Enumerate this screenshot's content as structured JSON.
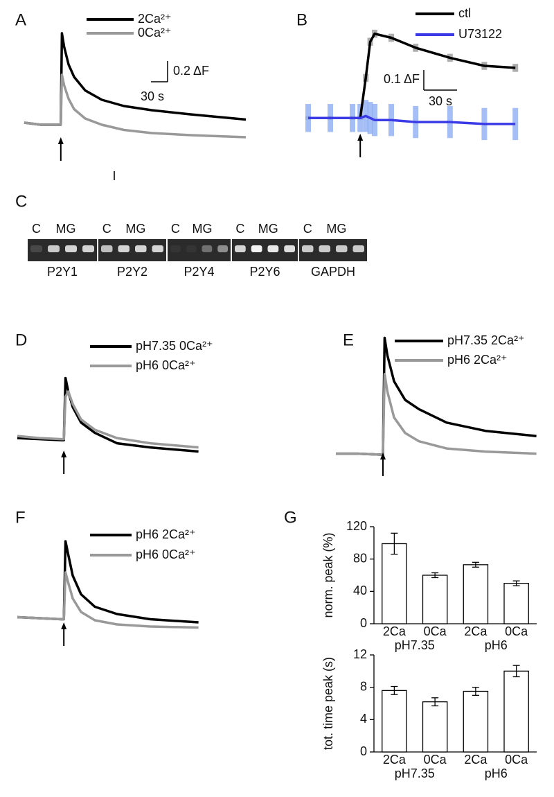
{
  "chart_data": [
    {
      "type": "line",
      "panel": "A",
      "annotation": "I",
      "x": [
        0,
        30,
        60,
        66,
        68,
        72,
        80,
        90,
        110,
        140,
        180,
        230,
        300,
        400
      ],
      "xlim": [
        0,
        410
      ],
      "ylim": [
        -0.2,
        0.9
      ],
      "stimulus": 66,
      "xscale": {
        "value": 30,
        "label": "30 s"
      },
      "yscale": {
        "value": 0.2,
        "label": "0.2 ΔF"
      },
      "series": [
        {
          "name": "2Ca²⁺",
          "color": "#000000",
          "values": [
            0.02,
            0.0,
            0.0,
            0.0,
            0.88,
            0.75,
            0.58,
            0.46,
            0.33,
            0.24,
            0.18,
            0.14,
            0.1,
            0.05
          ]
        },
        {
          "name": "0Ca²⁺",
          "color": "#999999",
          "values": [
            0.02,
            0.0,
            0.0,
            0.0,
            0.48,
            0.38,
            0.25,
            0.15,
            0.06,
            0.0,
            -0.05,
            -0.08,
            -0.1,
            -0.12
          ]
        }
      ]
    },
    {
      "type": "line",
      "panel": "B",
      "x": [
        0,
        20,
        40,
        47,
        52,
        56,
        60,
        75,
        97,
        128,
        159,
        187
      ],
      "xlim": [
        0,
        190
      ],
      "ylim": [
        -0.12,
        0.45
      ],
      "stimulus": 47,
      "xscale": {
        "value": 30,
        "label": "30 s"
      },
      "yscale": {
        "value": 0.1,
        "label": "0.1 ΔF"
      },
      "series": [
        {
          "name": "ctl",
          "color": "#000000",
          "values": [
            0.0,
            0.0,
            0.0,
            0.0,
            0.2,
            0.38,
            0.42,
            0.4,
            0.35,
            0.3,
            0.26,
            0.25
          ],
          "errors": [
            0.01,
            0.01,
            0.01,
            0.01,
            0.02,
            0.02,
            0.02,
            0.02,
            0.02,
            0.02,
            0.02,
            0.02
          ]
        },
        {
          "name": "U73122",
          "color": "#3a3ae6",
          "values": [
            0.0,
            0.0,
            0.0,
            0.0,
            0.01,
            0.0,
            -0.01,
            -0.01,
            -0.02,
            -0.02,
            -0.03,
            -0.03
          ],
          "errors": [
            0.07,
            0.07,
            0.07,
            0.07,
            0.08,
            0.08,
            0.08,
            0.08,
            0.08,
            0.08,
            0.08,
            0.08
          ]
        }
      ]
    },
    {
      "type": "line",
      "panel": "D",
      "x": [
        0,
        40,
        80,
        84,
        87,
        92,
        100,
        115,
        140,
        180,
        240,
        327
      ],
      "xlim": [
        0,
        330
      ],
      "ylim": [
        -0.2,
        0.65
      ],
      "stimulus": 84,
      "series": [
        {
          "name": "pH7.35 0Ca²⁺",
          "color": "#000000",
          "values": [
            0.0,
            -0.01,
            -0.02,
            -0.02,
            0.58,
            0.45,
            0.3,
            0.15,
            0.05,
            -0.05,
            -0.09,
            -0.13
          ]
        },
        {
          "name": "pH6 0Ca²⁺",
          "color": "#999999",
          "values": [
            0.02,
            0.0,
            -0.01,
            -0.01,
            0.4,
            0.45,
            0.33,
            0.18,
            0.08,
            0.0,
            -0.05,
            -0.09
          ]
        }
      ]
    },
    {
      "type": "line",
      "panel": "E",
      "x": [
        0,
        40,
        80,
        85,
        88,
        93,
        105,
        125,
        150,
        200,
        270,
        362
      ],
      "xlim": [
        0,
        370
      ],
      "ylim": [
        -0.07,
        1.17
      ],
      "stimulus": 85,
      "series": [
        {
          "name": "pH7.35 2Ca²⁺",
          "color": "#000000",
          "values": [
            0.0,
            0.0,
            -0.01,
            -0.01,
            1.12,
            0.95,
            0.7,
            0.52,
            0.43,
            0.3,
            0.22,
            0.17
          ]
        },
        {
          "name": "pH6 2Ca²⁺",
          "color": "#999999",
          "values": [
            0.0,
            0.0,
            -0.01,
            -0.01,
            0.77,
            0.6,
            0.35,
            0.2,
            0.12,
            0.05,
            0.02,
            0.0
          ]
        }
      ]
    },
    {
      "type": "line",
      "panel": "F",
      "x": [
        0,
        40,
        80,
        84,
        87,
        92,
        100,
        115,
        140,
        180,
        240,
        327
      ],
      "xlim": [
        0,
        330
      ],
      "ylim": [
        -0.13,
        0.97
      ],
      "stimulus": 84,
      "series": [
        {
          "name": "pH6 2Ca²⁺",
          "color": "#000000",
          "values": [
            0.0,
            -0.01,
            -0.02,
            -0.02,
            0.73,
            0.6,
            0.4,
            0.22,
            0.1,
            0.03,
            -0.02,
            -0.05
          ]
        },
        {
          "name": "pH6 0Ca²⁺",
          "color": "#999999",
          "values": [
            0.0,
            -0.01,
            -0.02,
            -0.02,
            0.43,
            0.33,
            0.18,
            0.05,
            -0.03,
            -0.07,
            -0.09,
            -0.1
          ]
        }
      ]
    },
    {
      "type": "bar",
      "panel": "G",
      "y_label": "norm. peak (%)",
      "categories": [
        "2Ca",
        "0Ca",
        "2Ca",
        "0Ca"
      ],
      "groups": [
        "pH7.35",
        "pH6"
      ],
      "values": [
        99,
        60,
        73,
        50
      ],
      "errors": [
        13,
        3,
        3,
        3
      ],
      "ylim": [
        0,
        120
      ],
      "yticks": [
        0,
        40,
        80,
        120
      ],
      "color": "#ffffff"
    },
    {
      "type": "bar",
      "y_label": "tot. time peak (s)",
      "categories": [
        "2Ca",
        "0Ca",
        "2Ca",
        "0Ca"
      ],
      "groups": [
        "pH7.35",
        "pH6"
      ],
      "values": [
        7.6,
        6.2,
        7.5,
        10
      ],
      "errors": [
        0.5,
        0.5,
        0.5,
        0.7
      ],
      "ylim": [
        0,
        12
      ],
      "yticks": [
        0,
        4,
        8,
        12
      ],
      "color": "#ffffff"
    }
  ],
  "gel": {
    "panel": "C",
    "lane_labels": [
      "C",
      "MG"
    ],
    "genes": [
      "P2Y1",
      "P2Y2",
      "P2Y4",
      "P2Y6",
      "GAPDH"
    ]
  }
}
